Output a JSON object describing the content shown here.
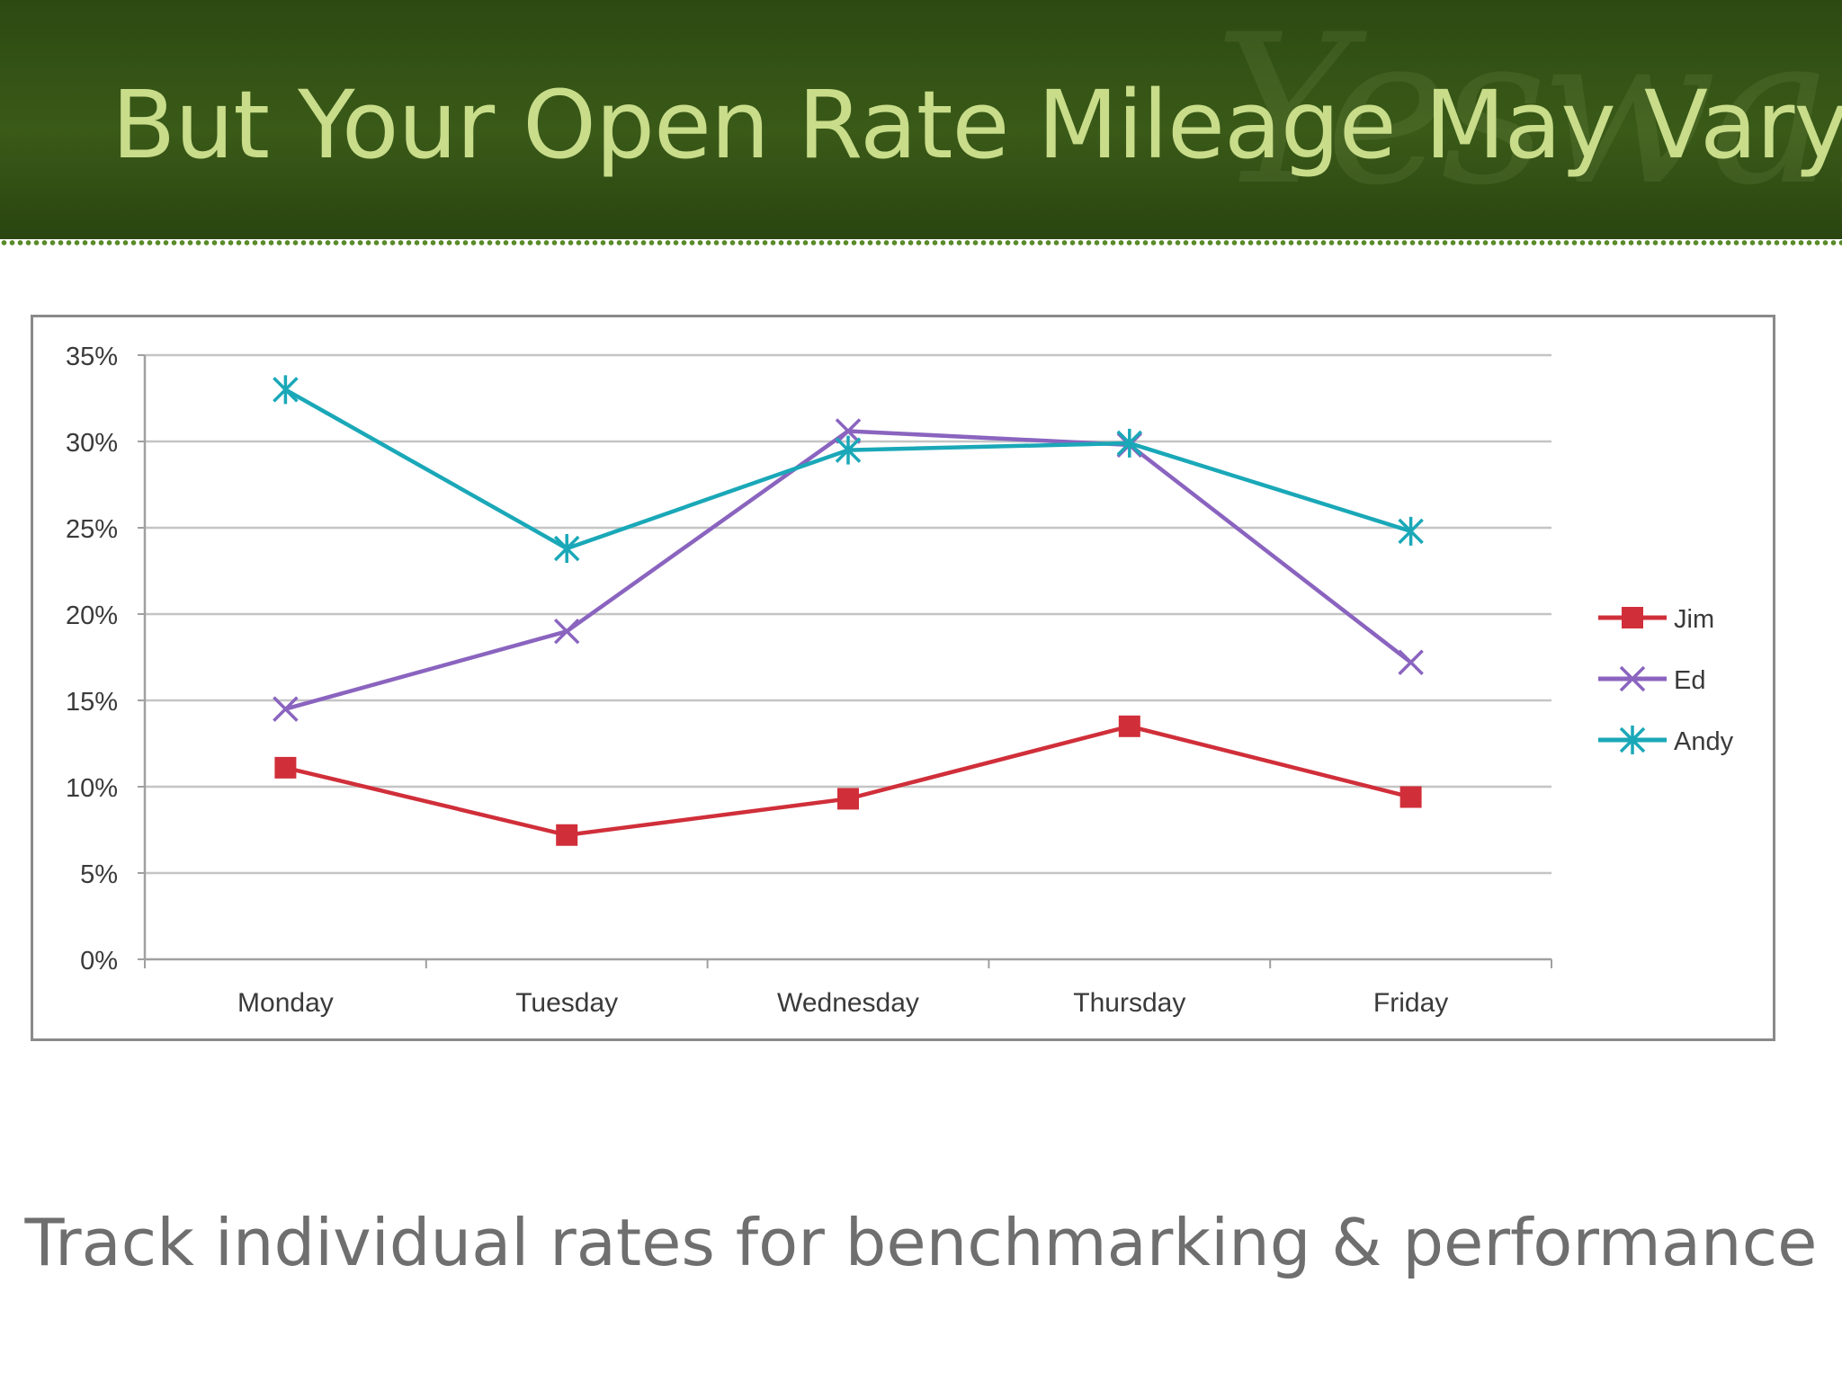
{
  "slide": {
    "title": "But Your Open Rate Mileage May Vary",
    "subtitle": "Track individual rates for benchmarking & performance",
    "watermark": "Yesware"
  },
  "colors": {
    "header_bg": "#34531a",
    "title": "#c8dc8a",
    "subtitle": "#6f6f6f"
  },
  "chart_data": {
    "type": "line",
    "categories": [
      "Monday",
      "Tuesday",
      "Wednesday",
      "Thursday",
      "Friday"
    ],
    "yticks": [
      "0%",
      "5%",
      "10%",
      "15%",
      "20%",
      "25%",
      "30%",
      "35%"
    ],
    "ylim": [
      0,
      35
    ],
    "grid": true,
    "legend": "right",
    "series": [
      {
        "name": "Jim",
        "color": "#d02f3a",
        "marker": "square",
        "values": [
          11.1,
          7.2,
          9.3,
          13.5,
          9.4
        ]
      },
      {
        "name": "Ed",
        "color": "#8a64bf",
        "marker": "x",
        "values": [
          14.5,
          19.0,
          30.6,
          29.8,
          17.2
        ]
      },
      {
        "name": "Andy",
        "color": "#1aa8b8",
        "marker": "star",
        "values": [
          33.0,
          23.8,
          29.5,
          29.9,
          24.8
        ]
      }
    ]
  }
}
